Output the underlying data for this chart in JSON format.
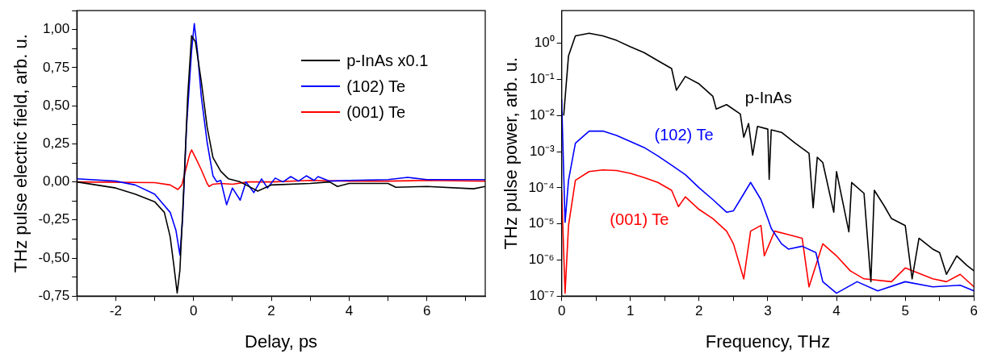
{
  "chart_data": [
    {
      "type": "line",
      "xlabel": "Delay, ps",
      "ylabel": "THz pulse electric field, arb. u.",
      "xlim": [
        -3,
        7.5
      ],
      "ylim": [
        -0.75,
        1.125
      ],
      "xticks": [
        {
          "value": -3,
          "label": null
        },
        -2,
        {
          "value": -1,
          "label": null
        },
        0,
        {
          "value": 1,
          "label": null
        },
        2,
        {
          "value": 3,
          "label": null
        },
        4,
        {
          "value": 5,
          "label": null
        },
        6,
        {
          "value": 7,
          "label": null
        }
      ],
      "yticks": [
        {
          "value": -0.75,
          "label": "-0,75"
        },
        {
          "value": -0.625,
          "label": null
        },
        {
          "value": -0.5,
          "label": "-0,50"
        },
        {
          "value": -0.375,
          "label": null
        },
        {
          "value": -0.25,
          "label": "-0,25"
        },
        {
          "value": -0.125,
          "label": null
        },
        {
          "value": 0,
          "label": "0,00"
        },
        {
          "value": 0.125,
          "label": null
        },
        {
          "value": 0.25,
          "label": "0,25"
        },
        {
          "value": 0.375,
          "label": null
        },
        {
          "value": 0.5,
          "label": "0,50"
        },
        {
          "value": 0.625,
          "label": null
        },
        {
          "value": 0.75,
          "label": "0,75"
        },
        {
          "value": 0.875,
          "label": null
        },
        {
          "value": 1,
          "label": "1,00"
        },
        {
          "value": 1.125,
          "label": null
        }
      ],
      "grid": false,
      "legend": "top right",
      "marker": "none",
      "line_style": "solid",
      "series": [
        {
          "name": "p-InAs x0.1",
          "color": "#000000",
          "x": [
            -3,
            -2,
            -1.5,
            -1,
            -0.75,
            -0.6,
            -0.5,
            -0.42,
            -0.35,
            -0.25,
            -0.15,
            -0.05,
            0.05,
            0.2,
            0.35,
            0.5,
            0.7,
            0.9,
            1.2,
            1.5,
            1.65,
            2,
            3,
            3.5,
            3.7,
            4,
            5,
            5.2,
            6,
            7.2,
            7.5
          ],
          "values": [
            0,
            -0.04,
            -0.08,
            -0.13,
            -0.2,
            -0.36,
            -0.56,
            -0.73,
            -0.58,
            -0.04,
            0.56,
            0.96,
            0.92,
            0.66,
            0.36,
            0.16,
            0.07,
            0.02,
            0,
            -0.04,
            -0.06,
            -0.02,
            -0.01,
            0,
            -0.03,
            -0.01,
            -0.01,
            -0.035,
            -0.03,
            -0.045,
            -0.03
          ]
        },
        {
          "name": "(102) Te",
          "color": "#0000ff",
          "x": [
            -3,
            -2,
            -1.5,
            -1,
            -0.6,
            -0.45,
            -0.35,
            -0.28,
            -0.18,
            -0.05,
            0.02,
            0.1,
            0.2,
            0.35,
            0.5,
            0.6,
            0.7,
            0.85,
            1,
            1.2,
            1.35,
            1.55,
            1.75,
            1.9,
            2.1,
            2.3,
            2.5,
            2.7,
            2.9,
            3.1,
            3.2,
            3.5,
            4,
            5,
            5.5,
            6,
            7,
            7.5
          ],
          "values": [
            0.02,
            0.005,
            -0.02,
            -0.08,
            -0.2,
            -0.32,
            -0.48,
            -0.24,
            0.36,
            0.86,
            1.04,
            0.86,
            0.56,
            0.26,
            0.04,
            0,
            0.01,
            -0.15,
            -0.04,
            -0.12,
            0,
            -0.07,
            0.02,
            -0.04,
            0.025,
            0,
            0.035,
            0.005,
            0.04,
            0.01,
            0.035,
            0.005,
            0.01,
            0.015,
            0.03,
            0.015,
            0.015,
            0.015
          ]
        },
        {
          "name": "(001) Te",
          "color": "#ff0000",
          "x": [
            -3,
            -1,
            -0.6,
            -0.4,
            -0.3,
            -0.2,
            -0.1,
            -0.05,
            0.05,
            0.2,
            0.35,
            0.4,
            0.5,
            0.7,
            1,
            1.4,
            2,
            3,
            4,
            5,
            6,
            7.5
          ],
          "values": [
            0,
            -0.005,
            -0.02,
            -0.05,
            -0.02,
            0.08,
            0.18,
            0.21,
            0.16,
            0.08,
            -0.01,
            -0.03,
            -0.015,
            -0.01,
            -0.015,
            0,
            0,
            0.01,
            0.005,
            0.005,
            0.01,
            0.005
          ]
        }
      ]
    },
    {
      "type": "line",
      "xlabel": "Frequency, THz",
      "ylabel": "THz pulse power, arb. u.",
      "log": "y",
      "xlim": [
        0,
        6
      ],
      "ylim": [
        1e-07,
        8
      ],
      "xticks": [
        0,
        {
          "value": 0.5,
          "label": null
        },
        1,
        {
          "value": 1.5,
          "label": null
        },
        2,
        {
          "value": 2.5,
          "label": null
        },
        3,
        {
          "value": 3.5,
          "label": null
        },
        4,
        {
          "value": 4.5,
          "label": null
        },
        5,
        {
          "value": 5.5,
          "label": null
        },
        6
      ],
      "yticks": [
        {
          "value": 1e-07,
          "label": "10⁻⁷"
        },
        {
          "value": 1e-06,
          "label": "10⁻⁶"
        },
        {
          "value": 1e-05,
          "label": "10⁻⁵"
        },
        {
          "value": 0.0001,
          "label": "10⁻⁴"
        },
        {
          "value": 0.001,
          "label": "10⁻³"
        },
        {
          "value": 0.01,
          "label": "10⁻²"
        },
        {
          "value": 0.1,
          "label": "10⁻¹"
        },
        {
          "value": 1,
          "label": "10⁰"
        }
      ],
      "grid": false,
      "legend": false,
      "marker": "none",
      "line_style": "solid",
      "series": [
        {
          "name": "p-InAs",
          "color": "#000000",
          "x": [
            0.03,
            0.1,
            0.2,
            0.4,
            0.6,
            0.8,
            1,
            1.2,
            1.4,
            1.6,
            1.67,
            1.8,
            2,
            2.2,
            2.25,
            2.4,
            2.6,
            2.65,
            2.72,
            2.78,
            2.85,
            3,
            3.02,
            3.05,
            3.2,
            3.4,
            3.6,
            3.66,
            3.72,
            3.8,
            3.96,
            4,
            4.18,
            4.22,
            4.4,
            4.5,
            4.55,
            4.7,
            4.8,
            5,
            5.1,
            5.2,
            5.4,
            5.5,
            5.6,
            5.75,
            5.9,
            6
          ],
          "values": [
            0.01,
            0.45,
            1.6,
            1.9,
            1.6,
            1.2,
            0.8,
            0.55,
            0.33,
            0.2,
            0.05,
            0.12,
            0.075,
            0.034,
            0.015,
            0.02,
            0.011,
            0.0025,
            0.006,
            0.0008,
            0.005,
            0.0042,
            0.00017,
            0.004,
            0.0034,
            0.0017,
            0.0009,
            2.8e-05,
            0.0007,
            0.0005,
            2.1e-05,
            0.00028,
            6e-06,
            0.00014,
            7e-05,
            2.5e-07,
            8.5e-05,
            3e-05,
            1.4e-05,
            9e-06,
            3e-07,
            4e-06,
            2e-06,
            1.6e-06,
            4e-07,
            1.3e-06,
            7e-07,
            5e-07
          ]
        },
        {
          "name": "(102) Te",
          "color": "#0000ff",
          "x": [
            0,
            0.05,
            0.1,
            0.2,
            0.4,
            0.6,
            0.8,
            1,
            1.2,
            1.4,
            1.6,
            1.8,
            2,
            2.2,
            2.4,
            2.5,
            2.6,
            2.75,
            2.9,
            3,
            3.05,
            3.2,
            3.3,
            3.5,
            3.7,
            3.8,
            4,
            4.3,
            4.6,
            5,
            5.4,
            5.8,
            6
          ],
          "values": [
            0.028,
            1.1e-05,
            0.00016,
            0.0017,
            0.0037,
            0.0037,
            0.0028,
            0.0019,
            0.0013,
            0.00076,
            0.00042,
            0.00023,
            0.0001,
            4.7e-05,
            2.1e-05,
            2.3e-05,
            4.7e-05,
            0.00014,
            4.7e-05,
            1.4e-05,
            7.5e-06,
            2.8e-06,
            2e-06,
            2.4e-06,
            1.6e-06,
            2.5e-07,
            1.2e-07,
            2.5e-07,
            1.4e-07,
            2.5e-07,
            1.8e-07,
            2e-07,
            1.4e-07
          ]
        },
        {
          "name": "(001) Te",
          "color": "#ff0000",
          "x": [
            0,
            0.05,
            0.1,
            0.2,
            0.4,
            0.6,
            0.8,
            1,
            1.2,
            1.4,
            1.6,
            1.7,
            1.8,
            2,
            2.2,
            2.4,
            2.5,
            2.65,
            2.75,
            2.9,
            2.95,
            3.1,
            3.3,
            3.5,
            3.6,
            3.8,
            4,
            4.2,
            4.4,
            4.8,
            5,
            5.4,
            5.6,
            5.8,
            6
          ],
          "values": [
            8.5e-05,
            1.2e-07,
            9e-06,
            0.00016,
            0.00028,
            0.00031,
            0.0003,
            0.00025,
            0.00019,
            0.00014,
            8.5e-05,
            3e-05,
            5.6e-05,
            2.5e-05,
            1.4e-05,
            6.3e-06,
            2.8e-06,
            3e-07,
            6.3e-06,
            9e-06,
            1.3e-06,
            6.3e-06,
            5e-06,
            4e-06,
            1.8e-07,
            2.8e-06,
            1.3e-06,
            5e-07,
            3e-07,
            2.5e-07,
            6e-07,
            3e-07,
            2.5e-07,
            4e-07,
            1.8e-07
          ]
        }
      ]
    }
  ]
}
